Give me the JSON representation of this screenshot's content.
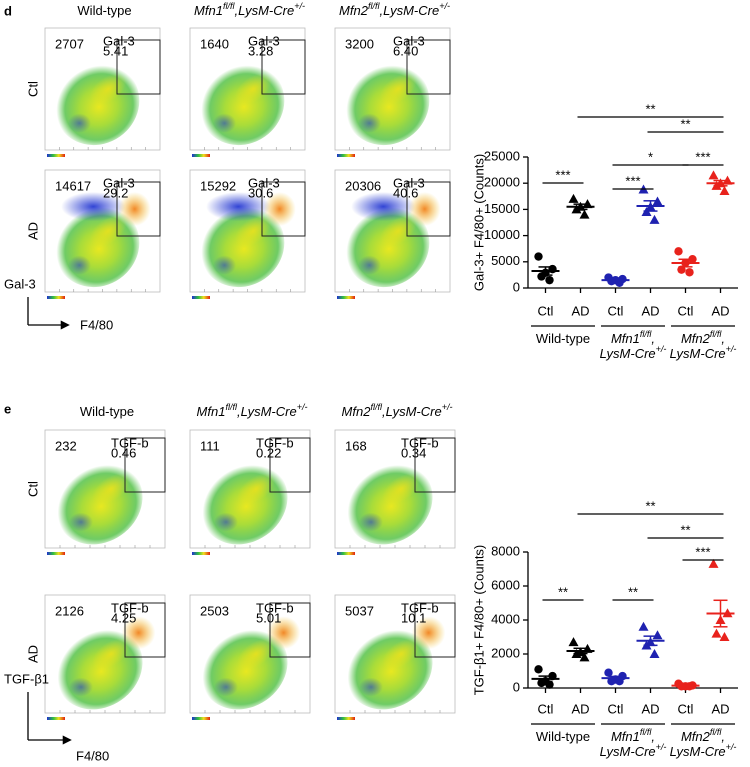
{
  "figure": {
    "panels": [
      {
        "label": "d",
        "columns": [
          [
            {
              "text": "Wild-type",
              "italic": false,
              "sup": false
            }
          ],
          [
            {
              "text": "Mfn1",
              "italic": true,
              "sup": false
            },
            {
              "text": "fl/fl",
              "italic": true,
              "sup": true
            },
            {
              "text": ",LysM-Cre",
              "italic": true,
              "sup": false
            },
            {
              "text": "+/-",
              "italic": true,
              "sup": true
            }
          ],
          [
            {
              "text": "Mfn2",
              "italic": true,
              "sup": false
            },
            {
              "text": "fl/fl",
              "italic": true,
              "sup": true
            },
            {
              "text": ",LysM-Cre",
              "italic": true,
              "sup": false
            },
            {
              "text": "+/-",
              "italic": true,
              "sup": true
            }
          ]
        ],
        "rows": [
          "Ctl",
          "AD"
        ],
        "y_axis_label": "Gal-3",
        "x_axis_label": "F4/80",
        "plots": [
          [
            {
              "count": 2707,
              "gate": "Gal-3",
              "percent": "5.41"
            },
            {
              "count": 1640,
              "gate": "Gal-3",
              "percent": "3.28"
            },
            {
              "count": 3200,
              "gate": "Gal-3",
              "percent": "6.40"
            }
          ],
          [
            {
              "count": 14617,
              "gate": "Gal-3",
              "percent": "29.2"
            },
            {
              "count": 15292,
              "gate": "Gal-3",
              "percent": "30.6"
            },
            {
              "count": 20306,
              "gate": "Gal-3",
              "percent": "40.6"
            }
          ]
        ]
      },
      {
        "label": "e",
        "columns": [
          [
            {
              "text": "Wild-type",
              "italic": false,
              "sup": false
            }
          ],
          [
            {
              "text": "Mfn1",
              "italic": true,
              "sup": false
            },
            {
              "text": "fl/fl",
              "italic": true,
              "sup": true
            },
            {
              "text": ",LysM-Cre",
              "italic": true,
              "sup": false
            },
            {
              "text": "+/-",
              "italic": true,
              "sup": true
            }
          ],
          [
            {
              "text": "Mfn2",
              "italic": true,
              "sup": false
            },
            {
              "text": "fl/fl",
              "italic": true,
              "sup": true
            },
            {
              "text": ",LysM-Cre",
              "italic": true,
              "sup": false
            },
            {
              "text": "+/-",
              "italic": true,
              "sup": true
            }
          ]
        ],
        "rows": [
          "Ctl",
          "AD"
        ],
        "y_axis_label": "TGF-β1",
        "x_axis_label": "F4/80",
        "plots": [
          [
            {
              "count": 232,
              "gate": "TGF-b",
              "percent": "0.46"
            },
            {
              "count": 111,
              "gate": "TGF-b",
              "percent": "0.22"
            },
            {
              "count": 168,
              "gate": "TGF-b",
              "percent": "0.34"
            }
          ],
          [
            {
              "count": 2126,
              "gate": "TGF-b",
              "percent": "4.25"
            },
            {
              "count": 2503,
              "gate": "TGF-b",
              "percent": "5.01"
            },
            {
              "count": 5037,
              "gate": "TGF-b",
              "percent": "10.1"
            }
          ]
        ]
      }
    ]
  },
  "chart_data": [
    {
      "type": "dot",
      "y_label": "Gal-3+ F4/80+ (Counts)",
      "categories": [
        "Ctl",
        "AD",
        "Ctl",
        "AD",
        "Ctl",
        "AD"
      ],
      "markers": [
        "circle",
        "triangle"
      ],
      "ylim": [
        0,
        25000
      ],
      "yticks": [
        0,
        5000,
        10000,
        15000,
        20000,
        25000
      ],
      "series": [
        {
          "name": [
            [
              {
                "text": "Wild-type",
                "italic": false,
                "sup": false
              }
            ]
          ],
          "color": "#000000",
          "values": [
            [
              6000,
              3600,
              2900,
              2200,
              1500
            ],
            [
              17000,
              16000,
              15500,
              15000,
              14000
            ]
          ],
          "means": [
            3240,
            15500
          ],
          "errors": [
            780,
            500
          ]
        },
        {
          "name": [
            [
              {
                "text": "Mfn1",
                "italic": true,
                "sup": false
              },
              {
                "text": "fl/fl",
                "italic": true,
                "sup": true
              },
              {
                "text": ",",
                "italic": true,
                "sup": false
              }
            ],
            [
              {
                "text": "LysM-Cre",
                "italic": true,
                "sup": false
              },
              {
                "text": "+/-",
                "italic": true,
                "sup": true
              }
            ]
          ],
          "color": "#1f22b0",
          "values": [
            [
              2000,
              1700,
              1500,
              1300,
              1000
            ],
            [
              18800,
              16500,
              15500,
              14500,
              13000
            ]
          ],
          "means": [
            1500,
            15660
          ],
          "errors": [
            170,
            980
          ]
        },
        {
          "name": [
            [
              {
                "text": "Mfn2",
                "italic": true,
                "sup": false
              },
              {
                "text": "fl/fl",
                "italic": true,
                "sup": true
              },
              {
                "text": ",",
                "italic": true,
                "sup": false
              }
            ],
            [
              {
                "text": "LysM-Cre",
                "italic": true,
                "sup": false
              },
              {
                "text": "+/-",
                "italic": true,
                "sup": true
              }
            ]
          ],
          "color": "#e8221c",
          "values": [
            [
              7000,
              5500,
              4800,
              3500,
              3000
            ],
            [
              21500,
              20500,
              20000,
              19500,
              18500
            ]
          ],
          "means": [
            4760,
            20000
          ],
          "errors": [
            720,
            500
          ]
        }
      ],
      "comparisons": [
        {
          "pair": [
            0,
            1
          ],
          "label": "***"
        },
        {
          "pair": [
            2,
            3
          ],
          "label": "***"
        },
        {
          "pair": [
            2,
            4
          ],
          "label": "*"
        },
        {
          "pair": [
            4,
            5
          ],
          "label": "***"
        },
        {
          "pair": [
            3,
            5
          ],
          "label": "**"
        },
        {
          "pair": [
            1,
            5
          ],
          "label": "**"
        }
      ]
    },
    {
      "type": "dot",
      "y_label": "TGF-β1+ F4/80+ (Counts)",
      "categories": [
        "Ctl",
        "AD",
        "Ctl",
        "AD",
        "Ctl",
        "AD"
      ],
      "markers": [
        "circle",
        "triangle"
      ],
      "ylim": [
        0,
        8000
      ],
      "yticks": [
        0,
        2000,
        4000,
        6000,
        8000
      ],
      "series": [
        {
          "name": [
            [
              {
                "text": "Wild-type",
                "italic": false,
                "sup": false
              }
            ]
          ],
          "color": "#000000",
          "values": [
            [
              1100,
              700,
              400,
              300,
              200
            ],
            [
              2700,
              2300,
              2100,
              2000,
              1800
            ]
          ],
          "means": [
            540,
            2180
          ],
          "errors": [
            160,
            155
          ]
        },
        {
          "name": [
            [
              {
                "text": "Mfn1",
                "italic": true,
                "sup": false
              },
              {
                "text": "fl/fl",
                "italic": true,
                "sup": true
              },
              {
                "text": ",",
                "italic": true,
                "sup": false
              }
            ],
            [
              {
                "text": "LysM-Cre",
                "italic": true,
                "sup": false
              },
              {
                "text": "+/-",
                "italic": true,
                "sup": true
              }
            ]
          ],
          "color": "#1f22b0",
          "values": [
            [
              900,
              700,
              500,
              400,
              400
            ],
            [
              3600,
              3100,
              2700,
              2500,
              2000
            ]
          ],
          "means": [
            580,
            2780
          ],
          "errors": [
            100,
            270
          ]
        },
        {
          "name": [
            [
              {
                "text": "Mfn2",
                "italic": true,
                "sup": false
              },
              {
                "text": "fl/fl",
                "italic": true,
                "sup": true
              },
              {
                "text": ",",
                "italic": true,
                "sup": false
              }
            ],
            [
              {
                "text": "LysM-Cre",
                "italic": true,
                "sup": false
              },
              {
                "text": "+/-",
                "italic": true,
                "sup": true
              }
            ]
          ],
          "color": "#e8221c",
          "values": [
            [
              250,
              150,
              100,
              100,
              100
            ],
            [
              7300,
              4400,
              4000,
              3200,
              3000
            ]
          ],
          "means": [
            140,
            4380
          ],
          "errors": [
            30,
            780
          ]
        }
      ],
      "comparisons": [
        {
          "pair": [
            0,
            1
          ],
          "label": "**"
        },
        {
          "pair": [
            2,
            3
          ],
          "label": "**"
        },
        {
          "pair": [
            4,
            5
          ],
          "label": "***"
        },
        {
          "pair": [
            3,
            5
          ],
          "label": "**"
        },
        {
          "pair": [
            1,
            5
          ],
          "label": "**"
        }
      ]
    }
  ]
}
